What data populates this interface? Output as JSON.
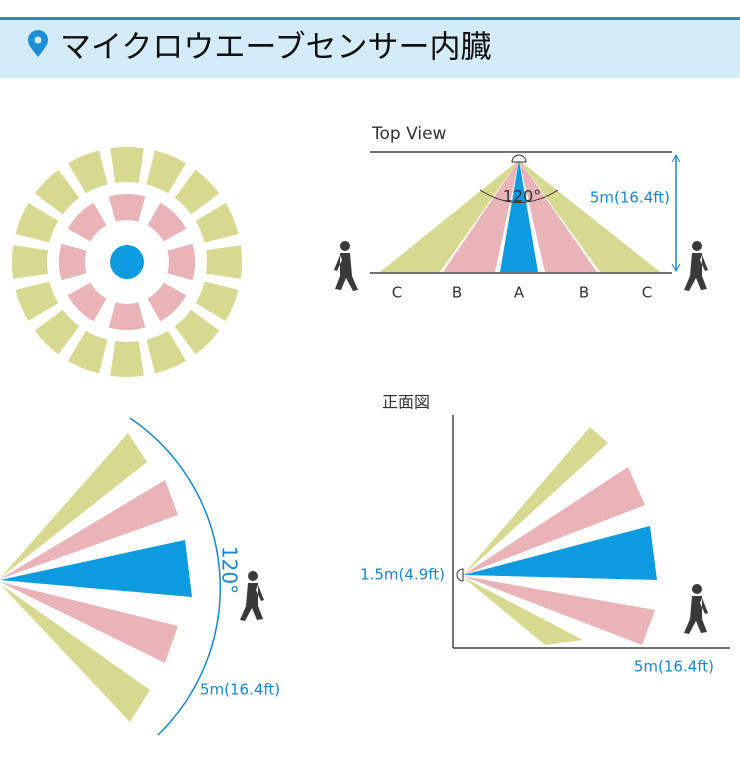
{
  "header": {
    "title": "マイクロウエーブセンサー内臓"
  },
  "top_view": {
    "title": "Top View",
    "angle": "120°",
    "distance": "5m(16.4ft)",
    "zones": [
      "C",
      "B",
      "A",
      "B",
      "C"
    ]
  },
  "side_view": {
    "angle": "120°",
    "distance": "5m(16.4ft)"
  },
  "front_view": {
    "title": "正面図",
    "height": "1.5m(4.9ft)",
    "distance": "5m(16.4ft)"
  }
}
